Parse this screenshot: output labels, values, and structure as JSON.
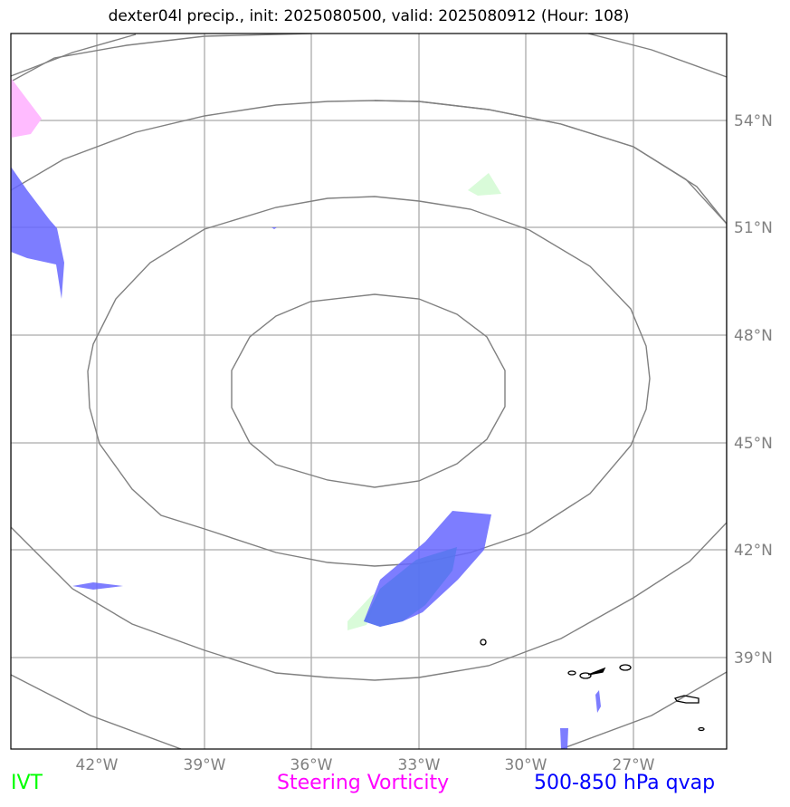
{
  "title": "dexter04l precip., init: 2025080500, valid: 2025080912 (Hour: 108)",
  "map": {
    "longitude_labels": [
      "42°W",
      "39°W",
      "36°W",
      "33°W",
      "30°W",
      "27°W"
    ],
    "latitude_labels": [
      "54°N",
      "51°N",
      "48°N",
      "45°N",
      "42°N",
      "39°N"
    ],
    "gridline_color": "#aaaaaa",
    "contour_color": "#808080",
    "coastline_color": "#000000",
    "fields": {
      "ivt_color": "#ccffcc",
      "vorticity_color": "#ff99ff",
      "qvap_color": "#3333ff"
    }
  },
  "legend": {
    "ivt": {
      "label": "IVT",
      "color": "#00ff00"
    },
    "vorticity": {
      "label": "Steering Vorticity",
      "color": "#ff00ff"
    },
    "qvap": {
      "label": "500-850 hPa qvap",
      "color": "#0000ff"
    }
  }
}
